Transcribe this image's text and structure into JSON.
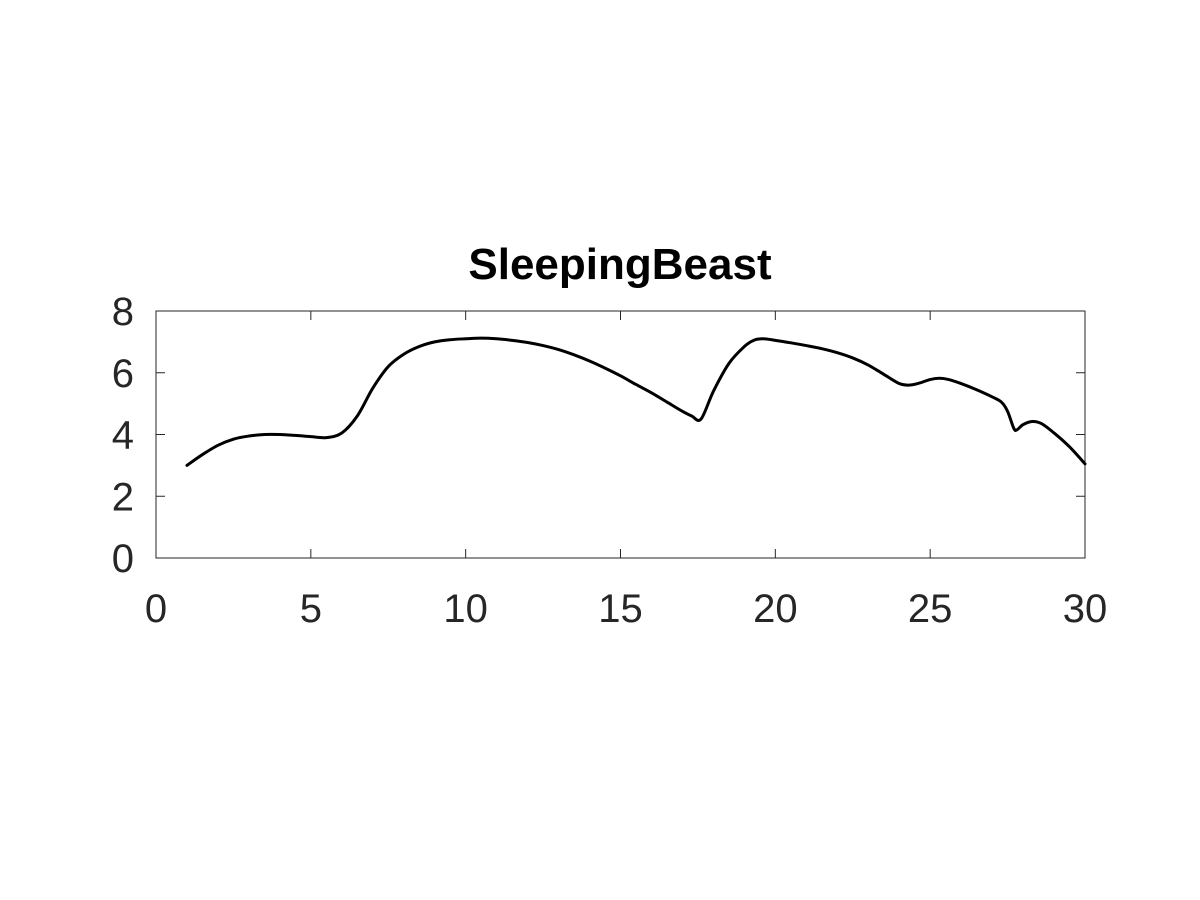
{
  "chart_data": {
    "type": "line",
    "title": "SleepingBeast",
    "xlabel": "",
    "ylabel": "",
    "xlim": [
      0,
      30
    ],
    "ylim": [
      0,
      8
    ],
    "xticks": [
      0,
      5,
      10,
      15,
      20,
      25,
      30
    ],
    "yticks": [
      0,
      2,
      4,
      6,
      8
    ],
    "grid": false,
    "colors": {
      "line": "#000000",
      "axis": "#262626"
    },
    "series": [
      {
        "x": [
          1,
          1.5,
          2,
          2.5,
          3,
          3.5,
          4,
          4.5,
          5,
          5.5,
          6,
          6.5,
          7,
          7.5,
          8,
          8.5,
          9,
          9.5,
          10,
          10.5,
          11,
          11.5,
          12,
          12.5,
          13,
          13.5,
          14,
          14.5,
          15,
          15.5,
          16,
          16.5,
          17,
          17.3,
          17.6,
          18,
          18.5,
          19,
          19.3,
          19.6,
          20,
          20.5,
          21,
          21.5,
          22,
          22.5,
          23,
          23.5,
          24,
          24.3,
          24.6,
          25,
          25.3,
          25.6,
          26,
          26.5,
          27,
          27.3,
          27.5,
          27.7,
          27.8,
          28,
          28.3,
          28.6,
          29,
          29.5,
          30
        ],
        "y": [
          3.0,
          3.35,
          3.65,
          3.85,
          3.95,
          4.0,
          4.0,
          3.97,
          3.93,
          3.9,
          4.05,
          4.6,
          5.5,
          6.2,
          6.6,
          6.85,
          7.0,
          7.07,
          7.1,
          7.12,
          7.1,
          7.05,
          6.98,
          6.88,
          6.75,
          6.58,
          6.38,
          6.15,
          5.9,
          5.62,
          5.35,
          5.05,
          4.75,
          4.6,
          4.5,
          5.4,
          6.3,
          6.85,
          7.05,
          7.1,
          7.05,
          6.97,
          6.88,
          6.78,
          6.65,
          6.48,
          6.25,
          5.95,
          5.65,
          5.6,
          5.65,
          5.78,
          5.82,
          5.78,
          5.65,
          5.45,
          5.22,
          5.05,
          4.75,
          4.2,
          4.15,
          4.32,
          4.42,
          4.35,
          4.05,
          3.6,
          3.05
        ]
      }
    ]
  }
}
